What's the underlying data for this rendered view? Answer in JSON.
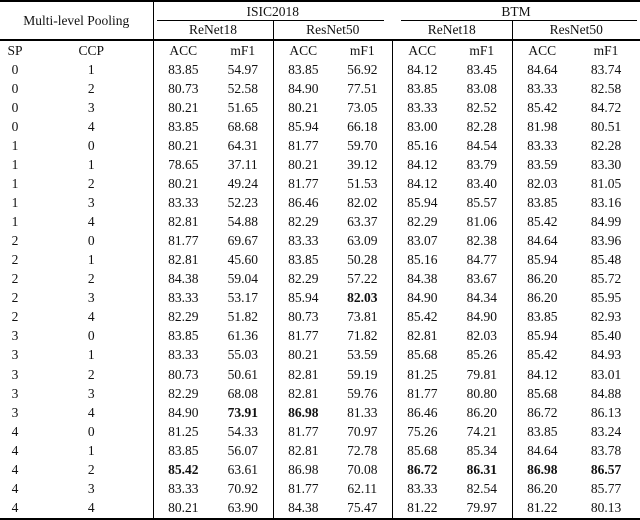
{
  "table": {
    "pooling_header": "Multi-level Pooling",
    "dataset_headers": [
      "ISIC2018",
      "BTM"
    ],
    "model_headers": [
      "ReNet18",
      "ResNet50",
      "ReNet18",
      "ResNet50"
    ],
    "sp_label": "SP",
    "ccp_label": "CCP",
    "metric_headers": [
      "ACC",
      "mF1",
      "ACC",
      "mF1",
      "ACC",
      "mF1",
      "ACC",
      "mF1"
    ],
    "rows": [
      {
        "sp": "0",
        "ccp": "1",
        "values": [
          "83.85",
          "54.97",
          "83.85",
          "56.92",
          "84.12",
          "83.45",
          "84.64",
          "83.74"
        ],
        "bold": []
      },
      {
        "sp": "0",
        "ccp": "2",
        "values": [
          "80.73",
          "52.58",
          "84.90",
          "77.51",
          "83.85",
          "83.08",
          "83.33",
          "82.58"
        ],
        "bold": []
      },
      {
        "sp": "0",
        "ccp": "3",
        "values": [
          "80.21",
          "51.65",
          "80.21",
          "73.05",
          "83.33",
          "82.52",
          "85.42",
          "84.72"
        ],
        "bold": []
      },
      {
        "sp": "0",
        "ccp": "4",
        "values": [
          "83.85",
          "68.68",
          "85.94",
          "66.18",
          "83.00",
          "82.28",
          "81.98",
          "80.51"
        ],
        "bold": []
      },
      {
        "sp": "1",
        "ccp": "0",
        "values": [
          "80.21",
          "64.31",
          "81.77",
          "59.70",
          "85.16",
          "84.54",
          "83.33",
          "82.28"
        ],
        "bold": []
      },
      {
        "sp": "1",
        "ccp": "1",
        "values": [
          "78.65",
          "37.11",
          "80.21",
          "39.12",
          "84.12",
          "83.79",
          "83.59",
          "83.30"
        ],
        "bold": []
      },
      {
        "sp": "1",
        "ccp": "2",
        "values": [
          "80.21",
          "49.24",
          "81.77",
          "51.53",
          "84.12",
          "83.40",
          "82.03",
          "81.05"
        ],
        "bold": []
      },
      {
        "sp": "1",
        "ccp": "3",
        "values": [
          "83.33",
          "52.23",
          "86.46",
          "82.02",
          "85.94",
          "85.57",
          "83.85",
          "83.16"
        ],
        "bold": []
      },
      {
        "sp": "1",
        "ccp": "4",
        "values": [
          "82.81",
          "54.88",
          "82.29",
          "63.37",
          "82.29",
          "81.06",
          "85.42",
          "84.99"
        ],
        "bold": []
      },
      {
        "sp": "2",
        "ccp": "0",
        "values": [
          "81.77",
          "69.67",
          "83.33",
          "63.09",
          "83.07",
          "82.38",
          "84.64",
          "83.96"
        ],
        "bold": []
      },
      {
        "sp": "2",
        "ccp": "1",
        "values": [
          "82.81",
          "45.60",
          "83.85",
          "50.28",
          "85.16",
          "84.77",
          "85.94",
          "85.48"
        ],
        "bold": []
      },
      {
        "sp": "2",
        "ccp": "2",
        "values": [
          "84.38",
          "59.04",
          "82.29",
          "57.22",
          "84.38",
          "83.67",
          "86.20",
          "85.72"
        ],
        "bold": []
      },
      {
        "sp": "2",
        "ccp": "3",
        "values": [
          "83.33",
          "53.17",
          "85.94",
          "82.03",
          "84.90",
          "84.34",
          "86.20",
          "85.95"
        ],
        "bold": [
          3
        ]
      },
      {
        "sp": "2",
        "ccp": "4",
        "values": [
          "82.29",
          "51.82",
          "80.73",
          "73.81",
          "85.42",
          "84.90",
          "83.85",
          "82.93"
        ],
        "bold": []
      },
      {
        "sp": "3",
        "ccp": "0",
        "values": [
          "83.85",
          "61.36",
          "81.77",
          "71.82",
          "82.81",
          "82.03",
          "85.94",
          "85.40"
        ],
        "bold": []
      },
      {
        "sp": "3",
        "ccp": "1",
        "values": [
          "83.33",
          "55.03",
          "80.21",
          "53.59",
          "85.68",
          "85.26",
          "85.42",
          "84.93"
        ],
        "bold": []
      },
      {
        "sp": "3",
        "ccp": "2",
        "values": [
          "80.73",
          "50.61",
          "82.81",
          "59.19",
          "81.25",
          "79.81",
          "84.12",
          "83.01"
        ],
        "bold": []
      },
      {
        "sp": "3",
        "ccp": "3",
        "values": [
          "82.29",
          "68.08",
          "82.81",
          "59.76",
          "81.77",
          "80.80",
          "85.68",
          "84.88"
        ],
        "bold": []
      },
      {
        "sp": "3",
        "ccp": "4",
        "values": [
          "84.90",
          "73.91",
          "86.98",
          "81.33",
          "86.46",
          "86.20",
          "86.72",
          "86.13"
        ],
        "bold": [
          1,
          2
        ]
      },
      {
        "sp": "4",
        "ccp": "0",
        "values": [
          "81.25",
          "54.33",
          "81.77",
          "70.97",
          "75.26",
          "74.21",
          "83.85",
          "83.24"
        ],
        "bold": []
      },
      {
        "sp": "4",
        "ccp": "1",
        "values": [
          "83.85",
          "56.07",
          "82.81",
          "72.78",
          "85.68",
          "85.34",
          "84.64",
          "83.78"
        ],
        "bold": []
      },
      {
        "sp": "4",
        "ccp": "2",
        "values": [
          "85.42",
          "63.61",
          "86.98",
          "70.08",
          "86.72",
          "86.31",
          "86.98",
          "86.57"
        ],
        "bold": [
          0,
          4,
          5,
          6,
          7
        ]
      },
      {
        "sp": "4",
        "ccp": "3",
        "values": [
          "83.33",
          "70.92",
          "81.77",
          "62.11",
          "83.33",
          "82.54",
          "86.20",
          "85.77"
        ],
        "bold": []
      },
      {
        "sp": "4",
        "ccp": "4",
        "values": [
          "80.21",
          "63.90",
          "84.38",
          "75.47",
          "81.22",
          "79.97",
          "81.22",
          "80.13"
        ],
        "bold": []
      }
    ]
  }
}
